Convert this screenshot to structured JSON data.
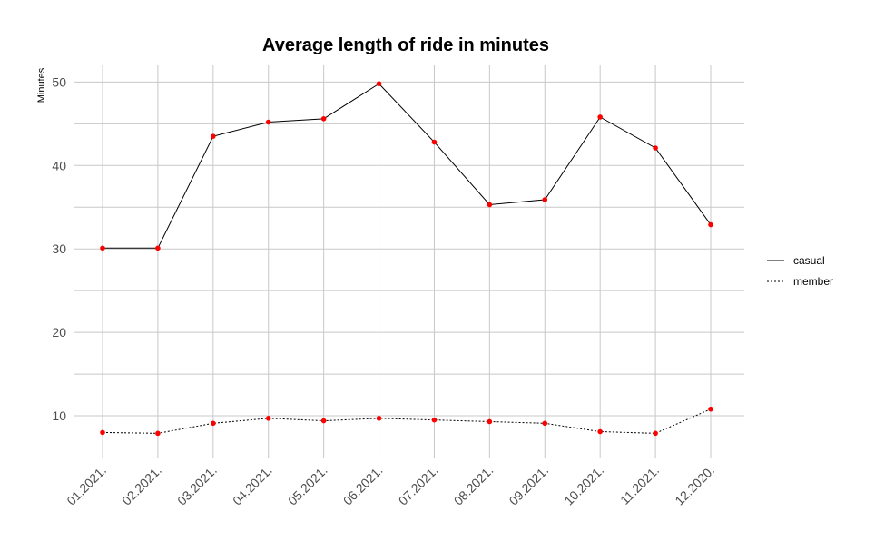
{
  "chart_data": {
    "type": "line",
    "title": "Average length of ride in minutes",
    "xlabel": "",
    "ylabel": "Minutes",
    "categories": [
      "01.2021.",
      "02.2021.",
      "03.2021.",
      "04.2021.",
      "05.2021.",
      "06.2021.",
      "07.2021.",
      "08.2021.",
      "09.2021.",
      "10.2021.",
      "11.2021.",
      "12.2020."
    ],
    "series": [
      {
        "name": "casual",
        "linetype": "solid",
        "values": [
          30.1,
          30.1,
          43.5,
          45.2,
          45.6,
          49.8,
          42.8,
          35.3,
          35.9,
          45.8,
          42.1,
          32.9
        ]
      },
      {
        "name": "member",
        "linetype": "dotted",
        "values": [
          8.0,
          7.9,
          9.1,
          9.7,
          9.4,
          9.7,
          9.5,
          9.3,
          9.1,
          8.1,
          7.9,
          10.8
        ]
      }
    ],
    "y_ticks": [
      10,
      20,
      30,
      40,
      50
    ],
    "ylim": [
      5.0,
      52.0
    ],
    "grid": true,
    "legend_position": "right",
    "colors": {
      "line": "#000000",
      "point": "#ff0000",
      "grid": "#c8c8c8",
      "tick_text": "#4d4d4d"
    }
  }
}
